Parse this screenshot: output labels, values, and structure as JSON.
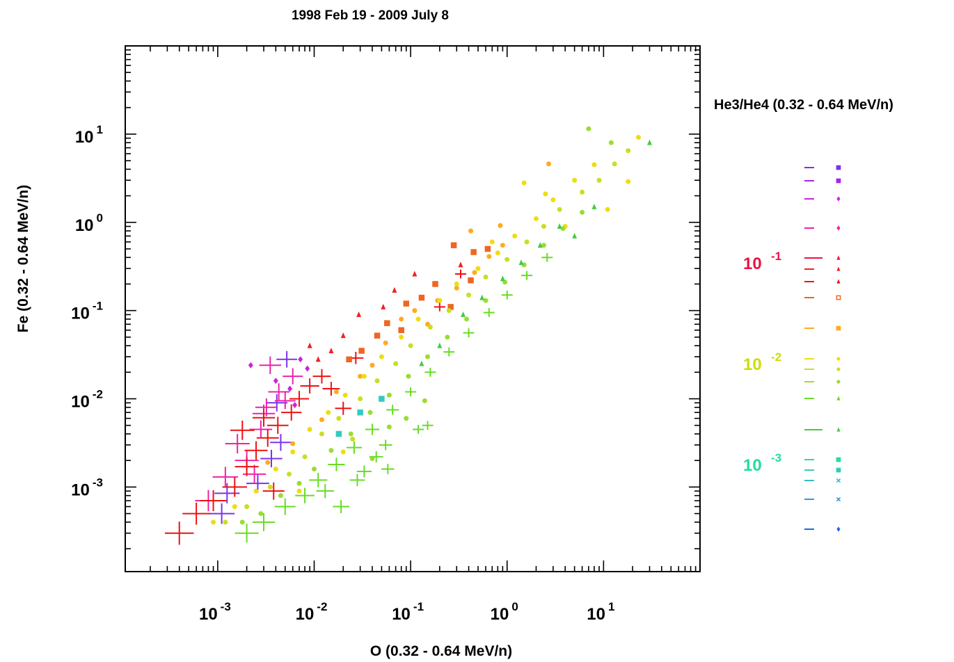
{
  "chart_data": {
    "type": "scatter",
    "title": "1998 Feb 19 - 2009 July 8",
    "xlabel": "O (0.32 - 0.64 MeV/n)",
    "ylabel": "Fe (0.32 - 0.64 MeV/n)",
    "x_scale": "log",
    "y_scale": "log",
    "xlim": [
      0.00011,
      100
    ],
    "ylim": [
      0.00011,
      100
    ],
    "x_ticks": [
      {
        "base": "10",
        "exp": "-3",
        "value": 0.001
      },
      {
        "base": "10",
        "exp": "-2",
        "value": 0.01
      },
      {
        "base": "10",
        "exp": "-1",
        "value": 0.1
      },
      {
        "base": "10",
        "exp": "0",
        "value": 1
      },
      {
        "base": "10",
        "exp": "1",
        "value": 10
      }
    ],
    "y_ticks": [
      {
        "base": "10",
        "exp": "-3",
        "value": 0.001
      },
      {
        "base": "10",
        "exp": "-2",
        "value": 0.01
      },
      {
        "base": "10",
        "exp": "-1",
        "value": 0.1
      },
      {
        "base": "10",
        "exp": "0",
        "value": 1
      },
      {
        "base": "10",
        "exp": "1",
        "value": 10
      }
    ],
    "grid": false,
    "legend": {
      "title": "He3/He4 (0.32 - 0.64 MeV/n)",
      "placement": "right",
      "labels": [
        {
          "base": "10",
          "exp": "-1",
          "color": "#ee1144"
        },
        {
          "base": "10",
          "exp": "-2",
          "color": "#ccdd00"
        },
        {
          "base": "10",
          "exp": "-3",
          "color": "#22dd99"
        }
      ],
      "entries": [
        {
          "color": "#7a33ee",
          "marker": "square"
        },
        {
          "color": "#aa22ee",
          "marker": "square"
        },
        {
          "color": "#cc22dd",
          "marker": "diamond"
        },
        {
          "color": "#ee22aa",
          "marker": "diamond"
        },
        {
          "color": "#ee1144",
          "marker": "triangle"
        },
        {
          "color": "#ee2222",
          "marker": "triangle"
        },
        {
          "color": "#ee1111",
          "marker": "triangle"
        },
        {
          "color": "#ee6622",
          "marker": "square-open"
        },
        {
          "color": "#ffaa22",
          "marker": "square"
        },
        {
          "color": "#eedd11",
          "marker": "circle"
        },
        {
          "color": "#ccdd22",
          "marker": "circle"
        },
        {
          "color": "#99dd33",
          "marker": "circle"
        },
        {
          "color": "#66dd22",
          "marker": "triangle"
        },
        {
          "color": "#44cc44",
          "marker": "triangle"
        },
        {
          "color": "#22ddaa",
          "marker": "square"
        },
        {
          "color": "#33ccbb",
          "marker": "square"
        },
        {
          "color": "#33bbcc",
          "marker": "x"
        },
        {
          "color": "#3399dd",
          "marker": "x"
        },
        {
          "color": "#2266dd",
          "marker": "diamond"
        }
      ]
    },
    "series": [
      {
        "color": "#7a33ee",
        "marker": "cross",
        "points": [
          [
            0.0011,
            0.0005
          ],
          [
            0.0026,
            0.0011
          ],
          [
            0.0045,
            0.0032
          ],
          [
            0.0052,
            0.028
          ],
          [
            0.0041,
            0.009
          ],
          [
            0.00125,
            0.00085
          ],
          [
            0.0036,
            0.0021
          ]
        ]
      },
      {
        "color": "#ee22aa",
        "marker": "cross",
        "points": [
          [
            0.0008,
            0.0007
          ],
          [
            0.0012,
            0.0013
          ],
          [
            0.002,
            0.002
          ],
          [
            0.0028,
            0.0045
          ],
          [
            0.0032,
            0.008
          ],
          [
            0.0043,
            0.012
          ],
          [
            0.006,
            0.018
          ],
          [
            0.0035,
            0.024
          ],
          [
            0.0016,
            0.0031
          ],
          [
            0.005,
            0.0095
          ],
          [
            0.0024,
            0.0014
          ],
          [
            0.003,
            0.0068
          ]
        ]
      },
      {
        "color": "#cc22dd",
        "marker": "diamond",
        "points": [
          [
            0.0022,
            0.024
          ],
          [
            0.0056,
            0.013
          ],
          [
            0.0072,
            0.028
          ],
          [
            0.004,
            0.016
          ],
          [
            0.0085,
            0.022
          ],
          [
            0.0063,
            0.0085
          ]
        ]
      },
      {
        "color": "#ee1111",
        "marker": "cross",
        "points": [
          [
            0.0004,
            0.0003
          ],
          [
            0.0006,
            0.0005
          ],
          [
            0.0009,
            0.0007
          ],
          [
            0.0015,
            0.001
          ],
          [
            0.002,
            0.0017
          ],
          [
            0.0025,
            0.0026
          ],
          [
            0.0033,
            0.0036
          ],
          [
            0.0042,
            0.005
          ],
          [
            0.0058,
            0.007
          ],
          [
            0.007,
            0.01
          ],
          [
            0.009,
            0.014
          ],
          [
            0.012,
            0.018
          ],
          [
            0.015,
            0.013
          ],
          [
            0.02,
            0.0078
          ],
          [
            0.0018,
            0.0044
          ],
          [
            0.003,
            0.0061
          ],
          [
            0.0038,
            0.0009
          ],
          [
            0.027,
            0.029
          ],
          [
            0.2,
            0.11
          ],
          [
            0.33,
            0.26
          ]
        ]
      },
      {
        "color": "#ee2222",
        "marker": "triangle",
        "points": [
          [
            0.011,
            0.028
          ],
          [
            0.015,
            0.035
          ],
          [
            0.02,
            0.052
          ],
          [
            0.029,
            0.09
          ],
          [
            0.052,
            0.11
          ],
          [
            0.068,
            0.17
          ],
          [
            0.11,
            0.26
          ],
          [
            0.33,
            0.33
          ],
          [
            0.009,
            0.04
          ]
        ]
      },
      {
        "color": "#ee6622",
        "marker": "square",
        "points": [
          [
            0.023,
            0.028
          ],
          [
            0.031,
            0.035
          ],
          [
            0.045,
            0.052
          ],
          [
            0.057,
            0.072
          ],
          [
            0.09,
            0.12
          ],
          [
            0.13,
            0.14
          ],
          [
            0.18,
            0.2
          ],
          [
            0.28,
            0.55
          ],
          [
            0.45,
            0.46
          ],
          [
            0.42,
            0.22
          ],
          [
            0.08,
            0.06
          ],
          [
            0.63,
            0.5
          ],
          [
            0.26,
            0.11
          ]
        ]
      },
      {
        "color": "#ffaa22",
        "marker": "circle",
        "points": [
          [
            0.012,
            0.0058
          ],
          [
            0.017,
            0.012
          ],
          [
            0.03,
            0.018
          ],
          [
            0.04,
            0.024
          ],
          [
            0.055,
            0.043
          ],
          [
            0.08,
            0.08
          ],
          [
            0.11,
            0.1
          ],
          [
            0.15,
            0.07
          ],
          [
            0.19,
            0.13
          ],
          [
            0.3,
            0.18
          ],
          [
            0.46,
            0.27
          ],
          [
            0.65,
            0.41
          ],
          [
            0.9,
            0.55
          ],
          [
            0.0033,
            0.0019
          ],
          [
            0.006,
            0.0031
          ],
          [
            2.7,
            4.6
          ],
          [
            0.85,
            0.92
          ],
          [
            0.42,
            0.8
          ]
        ]
      },
      {
        "color": "#eedd11",
        "marker": "circle",
        "points": [
          [
            0.0009,
            0.0004
          ],
          [
            0.0015,
            0.0006
          ],
          [
            0.0025,
            0.0009
          ],
          [
            0.004,
            0.0016
          ],
          [
            0.006,
            0.0025
          ],
          [
            0.009,
            0.0045
          ],
          [
            0.014,
            0.007
          ],
          [
            0.021,
            0.011
          ],
          [
            0.033,
            0.018
          ],
          [
            0.05,
            0.03
          ],
          [
            0.08,
            0.05
          ],
          [
            0.12,
            0.08
          ],
          [
            0.2,
            0.13
          ],
          [
            0.3,
            0.2
          ],
          [
            0.5,
            0.3
          ],
          [
            0.8,
            0.45
          ],
          [
            1.2,
            0.7
          ],
          [
            2.0,
            1.1
          ],
          [
            3.0,
            1.8
          ],
          [
            5.0,
            3.0
          ],
          [
            8.0,
            4.5
          ],
          [
            1.5,
            2.8
          ],
          [
            2.5,
            2.1
          ],
          [
            0.7,
            0.6
          ],
          [
            11.0,
            1.4
          ],
          [
            18.0,
            2.9
          ],
          [
            23.0,
            9.2
          ],
          [
            4.0,
            0.9
          ],
          [
            0.02,
            0.0025
          ],
          [
            0.007,
            0.0009
          ]
        ]
      },
      {
        "color": "#ccdd22",
        "marker": "circle",
        "points": [
          [
            0.0012,
            0.0004
          ],
          [
            0.002,
            0.0006
          ],
          [
            0.0035,
            0.001
          ],
          [
            0.0055,
            0.0014
          ],
          [
            0.008,
            0.0022
          ],
          [
            0.012,
            0.004
          ],
          [
            0.018,
            0.006
          ],
          [
            0.03,
            0.01
          ],
          [
            0.045,
            0.016
          ],
          [
            0.07,
            0.025
          ],
          [
            0.1,
            0.04
          ],
          [
            0.16,
            0.065
          ],
          [
            0.25,
            0.1
          ],
          [
            0.4,
            0.15
          ],
          [
            0.6,
            0.24
          ],
          [
            1.0,
            0.38
          ],
          [
            1.6,
            0.6
          ],
          [
            2.4,
            0.9
          ],
          [
            3.5,
            1.4
          ],
          [
            6.0,
            2.2
          ],
          [
            9.0,
            3.0
          ],
          [
            13.0,
            4.6
          ],
          [
            18.0,
            6.5
          ],
          [
            0.025,
            0.0035
          ]
        ]
      },
      {
        "color": "#99dd33",
        "marker": "circle",
        "points": [
          [
            0.0018,
            0.0004
          ],
          [
            0.0028,
            0.0005
          ],
          [
            0.0045,
            0.0008
          ],
          [
            0.007,
            0.0011
          ],
          [
            0.01,
            0.0016
          ],
          [
            0.015,
            0.0026
          ],
          [
            0.024,
            0.004
          ],
          [
            0.038,
            0.007
          ],
          [
            0.06,
            0.011
          ],
          [
            0.095,
            0.018
          ],
          [
            0.15,
            0.03
          ],
          [
            0.24,
            0.05
          ],
          [
            0.38,
            0.08
          ],
          [
            0.6,
            0.13
          ],
          [
            0.95,
            0.21
          ],
          [
            1.5,
            0.33
          ],
          [
            2.4,
            0.55
          ],
          [
            3.8,
            0.85
          ],
          [
            6.0,
            1.3
          ],
          [
            7.0,
            11.5
          ],
          [
            12.0,
            8.0
          ],
          [
            0.04,
            0.0021
          ],
          [
            0.06,
            0.0048
          ],
          [
            0.09,
            0.006
          ],
          [
            0.14,
            0.0095
          ]
        ]
      },
      {
        "color": "#66dd22",
        "marker": "cross",
        "points": [
          [
            0.002,
            0.0003
          ],
          [
            0.003,
            0.0004
          ],
          [
            0.005,
            0.0006
          ],
          [
            0.008,
            0.0008
          ],
          [
            0.011,
            0.0012
          ],
          [
            0.017,
            0.0018
          ],
          [
            0.026,
            0.0028
          ],
          [
            0.04,
            0.0045
          ],
          [
            0.065,
            0.0075
          ],
          [
            0.1,
            0.012
          ],
          [
            0.16,
            0.02
          ],
          [
            0.25,
            0.034
          ],
          [
            0.4,
            0.056
          ],
          [
            0.65,
            0.095
          ],
          [
            1.0,
            0.15
          ],
          [
            1.6,
            0.25
          ],
          [
            2.6,
            0.4
          ],
          [
            0.013,
            0.0009
          ],
          [
            0.019,
            0.0006
          ],
          [
            0.033,
            0.0015
          ],
          [
            0.055,
            0.003
          ],
          [
            0.12,
            0.0045
          ],
          [
            0.058,
            0.0016
          ],
          [
            0.044,
            0.0022
          ],
          [
            0.15,
            0.005
          ],
          [
            0.028,
            0.0012
          ]
        ]
      },
      {
        "color": "#44cc44",
        "marker": "triangle",
        "points": [
          [
            0.35,
            0.09
          ],
          [
            0.55,
            0.14
          ],
          [
            0.9,
            0.23
          ],
          [
            1.4,
            0.35
          ],
          [
            2.2,
            0.55
          ],
          [
            3.5,
            0.9
          ],
          [
            5.0,
            0.7
          ],
          [
            8.0,
            1.5
          ],
          [
            30.0,
            8.0
          ],
          [
            0.2,
            0.04
          ],
          [
            0.13,
            0.025
          ]
        ]
      },
      {
        "color": "#33ccbb",
        "marker": "square",
        "points": [
          [
            0.03,
            0.007
          ],
          [
            0.05,
            0.01
          ],
          [
            0.018,
            0.004
          ]
        ]
      }
    ]
  }
}
